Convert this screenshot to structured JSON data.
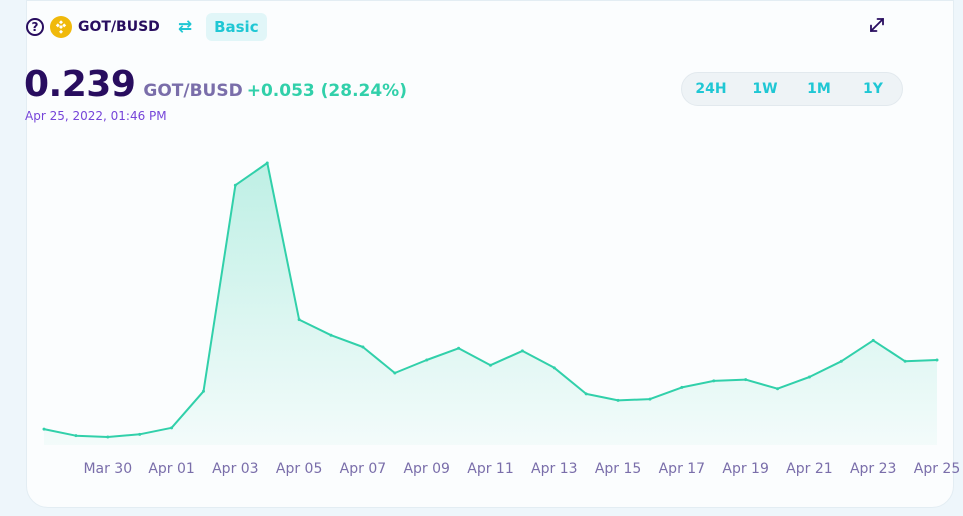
{
  "header": {
    "pair": "GOT/BUSD",
    "mode_label": "Basic"
  },
  "price": {
    "value": "0.239",
    "pair": "GOT/BUSD",
    "change": "+0.053 (28.24%)",
    "date": "Apr 25, 2022, 01:46 PM"
  },
  "tabs": [
    {
      "label": "24H",
      "active": false
    },
    {
      "label": "1W",
      "active": false
    },
    {
      "label": "1M",
      "active": true
    },
    {
      "label": "1Y",
      "active": false
    }
  ],
  "colors": {
    "line": "#31d0aa",
    "accent": "#1fc7d4",
    "text": "#280d5f",
    "coin": "#f0b90b"
  },
  "icons": {
    "help": "help-circle-icon",
    "coin": "busd-coin-icon",
    "swap": "swap-arrows-icon",
    "expand": "expand-icon"
  },
  "chart_data": {
    "type": "area",
    "title": "",
    "xlabel": "",
    "ylabel": "",
    "x_tick_labels": [
      "Mar 30",
      "Apr 01",
      "Apr 03",
      "Apr 05",
      "Apr 07",
      "Apr 09",
      "Apr 11",
      "Apr 13",
      "Apr 15",
      "Apr 17",
      "Apr 19",
      "Apr 21",
      "Apr 23",
      "Apr 25"
    ],
    "x": [
      "Mar 28",
      "Mar 29",
      "Mar 30",
      "Mar 31",
      "Apr 01",
      "Apr 02",
      "Apr 03",
      "Apr 04",
      "Apr 05",
      "Apr 06",
      "Apr 07",
      "Apr 08",
      "Apr 09",
      "Apr 10",
      "Apr 11",
      "Apr 12",
      "Apr 13",
      "Apr 14",
      "Apr 15",
      "Apr 16",
      "Apr 17",
      "Apr 18",
      "Apr 19",
      "Apr 20",
      "Apr 21",
      "Apr 22",
      "Apr 23",
      "Apr 24",
      "Apr 25"
    ],
    "values": [
      0.186,
      0.181,
      0.18,
      0.182,
      0.187,
      0.215,
      0.373,
      0.39,
      0.27,
      0.258,
      0.249,
      0.229,
      0.239,
      0.248,
      0.235,
      0.246,
      0.233,
      0.213,
      0.208,
      0.209,
      0.218,
      0.223,
      0.224,
      0.217,
      0.226,
      0.238,
      0.254,
      0.238,
      0.239
    ],
    "ylim": [
      0.17,
      0.4
    ],
    "grid": false,
    "legend": "none"
  }
}
